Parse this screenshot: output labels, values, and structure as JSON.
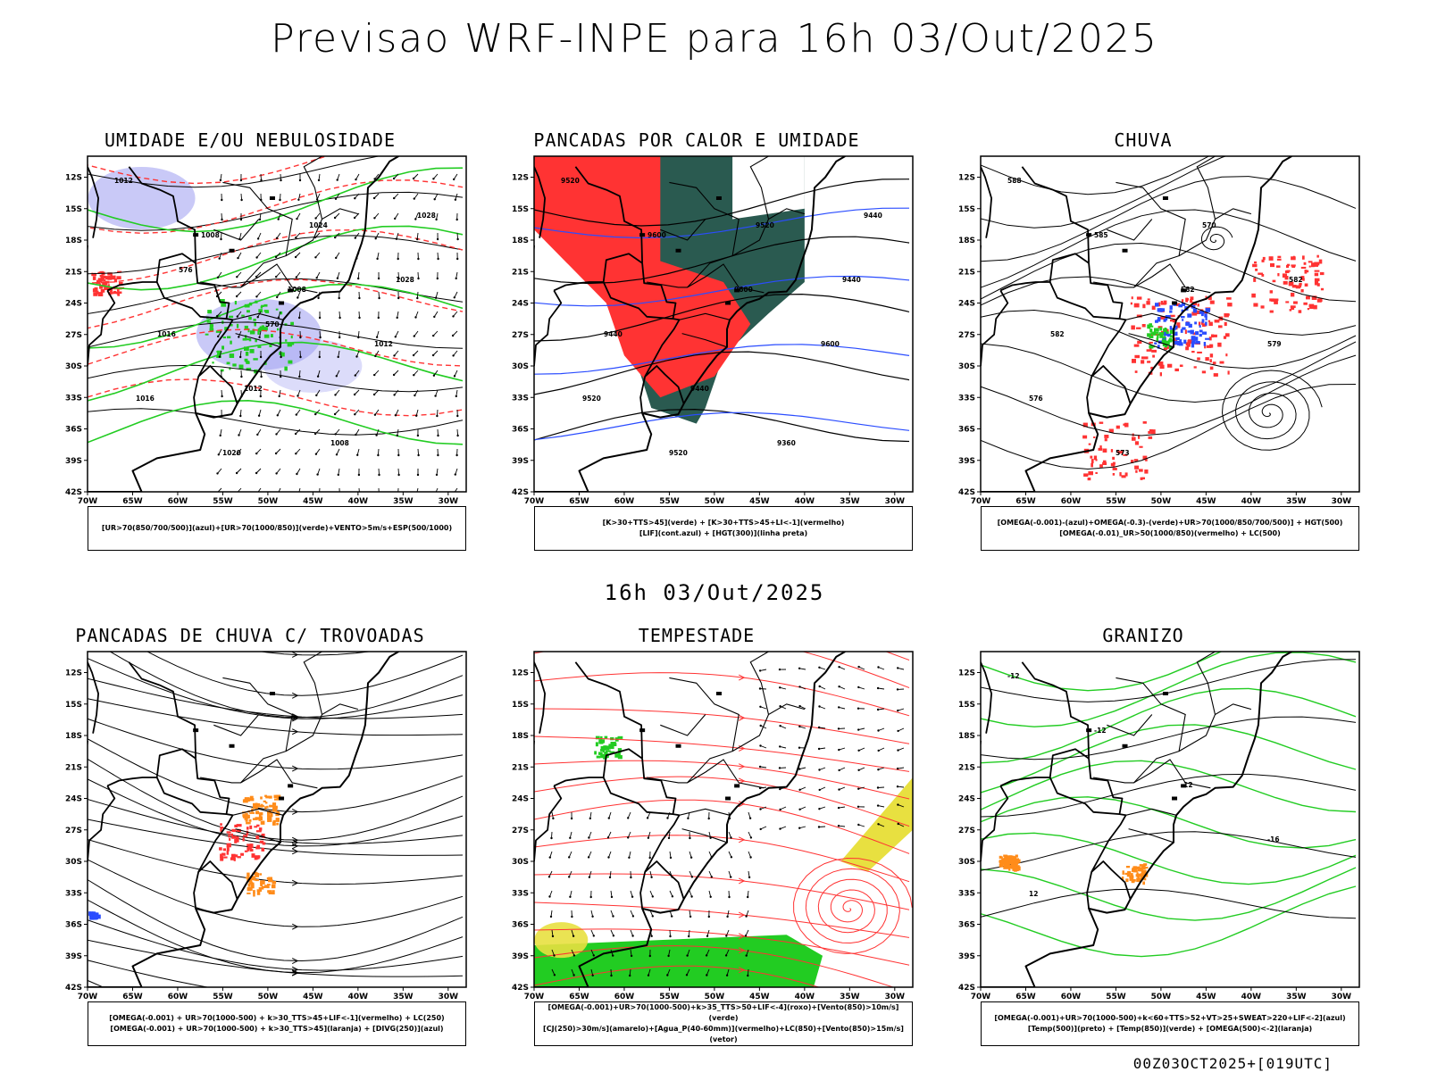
{
  "main_title": "Previsao WRF-INPE  para 16h 03/Out/2025",
  "mid_title": "16h 03/Out/2025",
  "footer": "00Z03OCT2025+[019UTC]",
  "axes": {
    "lat": [
      "12S",
      "15S",
      "18S",
      "21S",
      "24S",
      "27S",
      "30S",
      "33S",
      "36S",
      "39S",
      "42S"
    ],
    "lon": [
      "70W",
      "65W",
      "60W",
      "55W",
      "50W",
      "45W",
      "40W",
      "35W",
      "30W"
    ]
  },
  "colors": {
    "ur_azul": "#9c9cf0",
    "ur_verde": "#22cc22",
    "red": "#ff3333",
    "dark_green": "#2a5a50",
    "blue": "#2a4cff",
    "orange": "#ff8c1a",
    "yellow": "#e8e040",
    "green": "#22cc22"
  },
  "panels": [
    {
      "title": "UMIDADE E/OU NEBULOSIDADE",
      "legend": [
        "[UR>70(850/700/500)](azul)+[UR>70(1000/850)](verde)+VENTO>5m/s+ESP(500/1000)"
      ],
      "labels": [
        "1012",
        "1008",
        "1008",
        "1012",
        "1016",
        "1020",
        "1024",
        "1028",
        "1016",
        "1012",
        "1008",
        "1028",
        "576",
        "570"
      ]
    },
    {
      "title": "PANCADAS POR CALOR E UMIDADE",
      "legend": [
        "[K>30+TTS>45](verde) + [K>30+TTS>45+LI<-1](vermelho)",
        "[LIF](cont.azul) + [HGT(300)](linha preta)"
      ],
      "labels": [
        "9520",
        "9600",
        "9600",
        "9600",
        "9520",
        "9520",
        "9520",
        "9440",
        "9440",
        "9440",
        "9360",
        "9440"
      ]
    },
    {
      "title": "CHUVA",
      "legend": [
        "[OMEGA(-0.001)-(azul)+OMEGA(-0.3)-(verde)+UR>70(1000/850/700/500)] + HGT(500)",
        "[OMEGA(-0.01)_UR>50(1000/850)(vermelho) + LC(500)"
      ],
      "labels": [
        "588",
        "585",
        "582",
        "579",
        "576",
        "573",
        "570",
        "582",
        "582"
      ]
    },
    {
      "title": "PANCADAS DE CHUVA C/ TROVOADAS",
      "legend": [
        "[OMEGA(-0.001) + UR>70(1000-500) + k>30_TTS>45+LIF<-1](vermelho) + LC(250)",
        "[OMEGA(-0.001) + UR>70(1000-500) + k>30_TTS>45](laranja) + [DIVG(250)](azul)"
      ],
      "labels": []
    },
    {
      "title": "TEMPESTADE",
      "legend": [
        "[OMEGA(-0.001)+UR>70(1000-500)+k>35_TTS>50+LIF<-4](roxo)+[Vento(850)>10m/s](verde)",
        "[CJ(250)>30m/s](amarelo)+[Agua_P(40-60mm)](vermelho)+LC(850)+[Vento(850)>15m/s](vetor)"
      ],
      "labels": []
    },
    {
      "title": "GRANIZO",
      "legend": [
        "[OMEGA(-0.001)+UR>70(1000-500)+k<60+TTS>52+VT>25+SWEAT>220+LIF<-2](azul)",
        "[Temp(500)](preto) + [Temp(850)](verde) + [OMEGA(500)<-2](laranja)"
      ],
      "labels": [
        "-12",
        "-12",
        "-12",
        "-16",
        "12"
      ]
    }
  ]
}
